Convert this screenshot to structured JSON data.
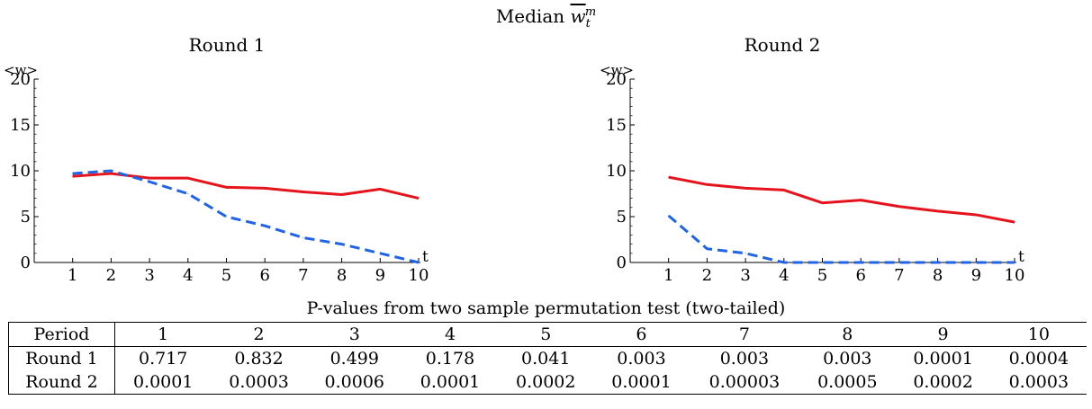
{
  "figure": {
    "title_prefix": "Median ",
    "title_var": "w",
    "title_sub": "t",
    "title_sup": "m"
  },
  "chart_data": [
    {
      "type": "line",
      "title": "Round 1",
      "ylabel": "<w>",
      "xlabel": "t",
      "x": [
        1,
        2,
        3,
        4,
        5,
        6,
        7,
        8,
        9,
        10
      ],
      "xlim": [
        0,
        10
      ],
      "ylim": [
        0,
        20
      ],
      "yticks": [
        0,
        5,
        10,
        15,
        20
      ],
      "xticks": [
        1,
        2,
        3,
        4,
        5,
        6,
        7,
        8,
        9,
        10
      ],
      "series": [
        {
          "style": "solid",
          "color": "#e5141c",
          "values": [
            9.4,
            9.7,
            9.2,
            9.2,
            8.2,
            8.1,
            7.7,
            7.4,
            8.0,
            7.0
          ]
        },
        {
          "style": "dashed",
          "color": "#1f64e6",
          "values": [
            9.7,
            10.0,
            8.8,
            7.5,
            5.0,
            4.0,
            2.7,
            2.0,
            1.0,
            0.0
          ]
        }
      ]
    },
    {
      "type": "line",
      "title": "Round 2",
      "ylabel": "<w>",
      "xlabel": "t",
      "x": [
        1,
        2,
        3,
        4,
        5,
        6,
        7,
        8,
        9,
        10
      ],
      "xlim": [
        0,
        10
      ],
      "ylim": [
        0,
        20
      ],
      "yticks": [
        0,
        5,
        10,
        15,
        20
      ],
      "xticks": [
        1,
        2,
        3,
        4,
        5,
        6,
        7,
        8,
        9,
        10
      ],
      "series": [
        {
          "style": "solid",
          "color": "#e5141c",
          "values": [
            9.3,
            8.5,
            8.1,
            7.9,
            6.5,
            6.8,
            6.1,
            5.6,
            5.2,
            4.4
          ]
        },
        {
          "style": "dashed",
          "color": "#1f64e6",
          "values": [
            5.1,
            1.5,
            1.0,
            0.0,
            0.0,
            0.0,
            0.0,
            0.0,
            0.0,
            0.0
          ]
        }
      ]
    }
  ],
  "table": {
    "caption": "P-values from two sample permutation test (two-tailed)",
    "header_label": "Period",
    "periods": [
      "1",
      "2",
      "3",
      "4",
      "5",
      "6",
      "7",
      "8",
      "9",
      "10"
    ],
    "rows": [
      {
        "label": "Round 1",
        "values": [
          "0.717",
          "0.832",
          "0.499",
          "0.178",
          "0.041",
          "0.003",
          "0.003",
          "0.003",
          "0.0001",
          "0.0004"
        ]
      },
      {
        "label": "Round 2",
        "values": [
          "0.0001",
          "0.0003",
          "0.0006",
          "0.0001",
          "0.0002",
          "0.0001",
          "0.00003",
          "0.0005",
          "0.0002",
          "0.0003"
        ]
      }
    ]
  }
}
